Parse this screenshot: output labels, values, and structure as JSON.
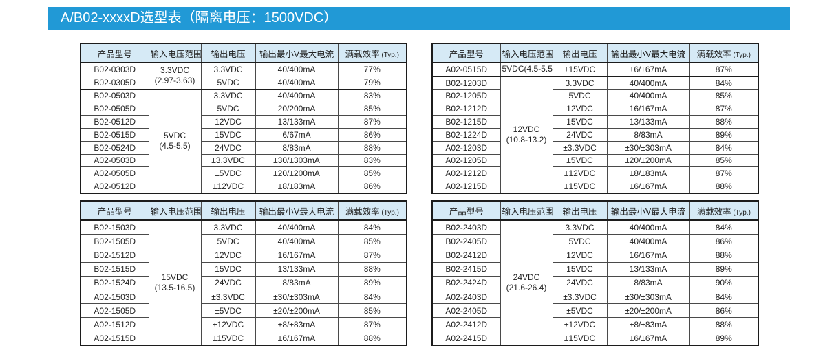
{
  "banner": {
    "title": "A/B02-xxxxD选型表（隔离电压：1500VDC）"
  },
  "colors": {
    "banner_bg": "#2199d6",
    "table_header_bg": "#d6eaf6",
    "border": "#1c1c1c"
  },
  "columns": [
    "产品型号",
    "输入电压范围",
    "输出电压",
    "输出最小V最大电流",
    "满载效率"
  ],
  "typ_suffix": "(Typ.)",
  "tables": [
    {
      "position": "top-left",
      "groups": [
        {
          "range_lines": [
            "3.3VDC",
            "(2.97-3.63)"
          ],
          "rows": [
            {
              "model": "B02-0303D",
              "vout": "3.3VDC",
              "current": "40/400mA",
              "eff": "77%"
            },
            {
              "model": "B02-0305D",
              "vout": "5VDC",
              "current": "40/400mA",
              "eff": "79%"
            }
          ]
        },
        {
          "range_lines": [
            "5VDC",
            "(4.5-5.5)"
          ],
          "rows": [
            {
              "model": "B02-0503D",
              "vout": "3.3VDC",
              "current": "40/400mA",
              "eff": "83%"
            },
            {
              "model": "B02-0505D",
              "vout": "5VDC",
              "current": "20/200mA",
              "eff": "85%"
            },
            {
              "model": "B02-0512D",
              "vout": "12VDC",
              "current": "13/133mA",
              "eff": "87%"
            },
            {
              "model": "B02-0515D",
              "vout": "15VDC",
              "current": "6/67mA",
              "eff": "86%"
            },
            {
              "model": "B02-0524D",
              "vout": "24VDC",
              "current": "8/83mA",
              "eff": "88%"
            },
            {
              "model": "A02-0503D",
              "vout": "±3.3VDC",
              "current": "±30/±303mA",
              "eff": "83%"
            },
            {
              "model": "A02-0505D",
              "vout": "±5VDC",
              "current": "±20/±200mA",
              "eff": "85%"
            },
            {
              "model": "A02-0512D",
              "vout": "±12VDC",
              "current": "±8/±83mA",
              "eff": "86%"
            }
          ]
        }
      ]
    },
    {
      "position": "top-right",
      "groups": [
        {
          "range_lines": [
            "5VDC(4.5-5.5)"
          ],
          "rows": [
            {
              "model": "A02-0515D",
              "vout": "±15VDC",
              "current": "±6/±67mA",
              "eff": "87%"
            }
          ]
        },
        {
          "range_lines": [
            "12VDC",
            "(10.8-13.2)"
          ],
          "rows": [
            {
              "model": "B02-1203D",
              "vout": "3.3VDC",
              "current": "40/400mA",
              "eff": "84%"
            },
            {
              "model": "B02-1205D",
              "vout": "5VDC",
              "current": "40/400mA",
              "eff": "85%"
            },
            {
              "model": "B02-1212D",
              "vout": "12VDC",
              "current": "16/167mA",
              "eff": "87%"
            },
            {
              "model": "B02-1215D",
              "vout": "15VDC",
              "current": "13/133mA",
              "eff": "88%"
            },
            {
              "model": "B02-1224D",
              "vout": "24VDC",
              "current": "8/83mA",
              "eff": "89%"
            },
            {
              "model": "A02-1203D",
              "vout": "±3.3VDC",
              "current": "±30/±303mA",
              "eff": "84%"
            },
            {
              "model": "A02-1205D",
              "vout": "±5VDC",
              "current": "±20/±200mA",
              "eff": "85%"
            },
            {
              "model": "A02-1212D",
              "vout": "±12VDC",
              "current": "±8/±83mA",
              "eff": "87%"
            },
            {
              "model": "A02-1215D",
              "vout": "±15VDC",
              "current": "±6/±67mA",
              "eff": "88%"
            }
          ]
        }
      ]
    },
    {
      "position": "bottom-left",
      "groups": [
        {
          "range_lines": [
            "15VDC",
            "(13.5-16.5)"
          ],
          "rows": [
            {
              "model": "B02-1503D",
              "vout": "3.3VDC",
              "current": "40/400mA",
              "eff": "84%"
            },
            {
              "model": "B02-1505D",
              "vout": "5VDC",
              "current": "40/400mA",
              "eff": "85%"
            },
            {
              "model": "B02-1512D",
              "vout": "12VDC",
              "current": "16/167mA",
              "eff": "87%"
            },
            {
              "model": "B02-1515D",
              "vout": "15VDC",
              "current": "13/133mA",
              "eff": "88%"
            },
            {
              "model": "B02-1524D",
              "vout": "24VDC",
              "current": "8/83mA",
              "eff": "89%"
            },
            {
              "model": "A02-1503D",
              "vout": "±3.3VDC",
              "current": "±30/±303mA",
              "eff": "84%"
            },
            {
              "model": "A02-1505D",
              "vout": "±5VDC",
              "current": "±20/±200mA",
              "eff": "85%"
            },
            {
              "model": "A02-1512D",
              "vout": "±12VDC",
              "current": "±8/±83mA",
              "eff": "87%"
            },
            {
              "model": "A02-1515D",
              "vout": "±15VDC",
              "current": "±6/±67mA",
              "eff": "88%"
            }
          ]
        }
      ]
    },
    {
      "position": "bottom-right",
      "groups": [
        {
          "range_lines": [
            "24VDC",
            "(21.6-26.4)"
          ],
          "rows": [
            {
              "model": "B02-2403D",
              "vout": "3.3VDC",
              "current": "40/400mA",
              "eff": "84%"
            },
            {
              "model": "B02-2405D",
              "vout": "5VDC",
              "current": "40/400mA",
              "eff": "86%"
            },
            {
              "model": "B02-2412D",
              "vout": "12VDC",
              "current": "16/167mA",
              "eff": "88%"
            },
            {
              "model": "B02-2415D",
              "vout": "15VDC",
              "current": "13/133mA",
              "eff": "89%"
            },
            {
              "model": "B02-2424D",
              "vout": "24VDC",
              "current": "8/83mA",
              "eff": "90%"
            },
            {
              "model": "A02-2403D",
              "vout": "±3.3VDC",
              "current": "±30/±303mA",
              "eff": "84%"
            },
            {
              "model": "A02-2405D",
              "vout": "±5VDC",
              "current": "±20/±200mA",
              "eff": "86%"
            },
            {
              "model": "A02-2412D",
              "vout": "±12VDC",
              "current": "±8/±83mA",
              "eff": "88%"
            },
            {
              "model": "A02-2415D",
              "vout": "±15VDC",
              "current": "±6/±67mA",
              "eff": "89%"
            }
          ]
        }
      ]
    }
  ]
}
